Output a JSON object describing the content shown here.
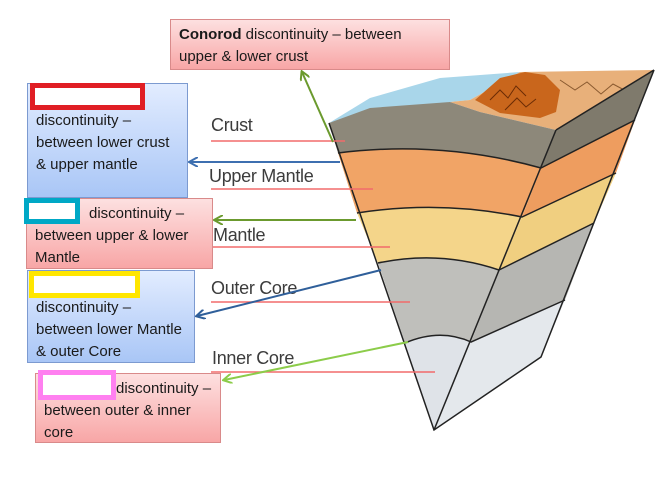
{
  "layers": {
    "crust": "Crust",
    "upper_mantle": "Upper Mantle",
    "mantle": "Mantle",
    "outer_core": "Outer Core",
    "inner_core": "Inner Core"
  },
  "callouts": {
    "conrad": {
      "bold": "Conorod",
      "text": " discontinuity – between upper & lower crust"
    },
    "moho": {
      "text": "discontinuity – between lower crust & upper mantle",
      "blank_color": "#e01e24"
    },
    "repetti": {
      "text": "discontinuity – between upper & lower Mantle",
      "blank_color": "#00a8c6"
    },
    "gutenberg": {
      "text": "discontinuity – between lower Mantle & outer Core",
      "blank_color": "#ffe600"
    },
    "lehmann": {
      "text": "discontinuity – between outer & inner core",
      "blank_color": "#ff80f0"
    }
  },
  "colors": {
    "crust": "#8d887a",
    "upper_mantle": "#f1a466",
    "mantle": "#f4d58a",
    "outer_core": "#bfbfbb",
    "inner_core": "#dfe3e8",
    "ocean": "#a9d6ea",
    "mountain": "#c9661c",
    "callout_pink": "#f8a6a6",
    "callout_blue": "#a9c6f6"
  }
}
